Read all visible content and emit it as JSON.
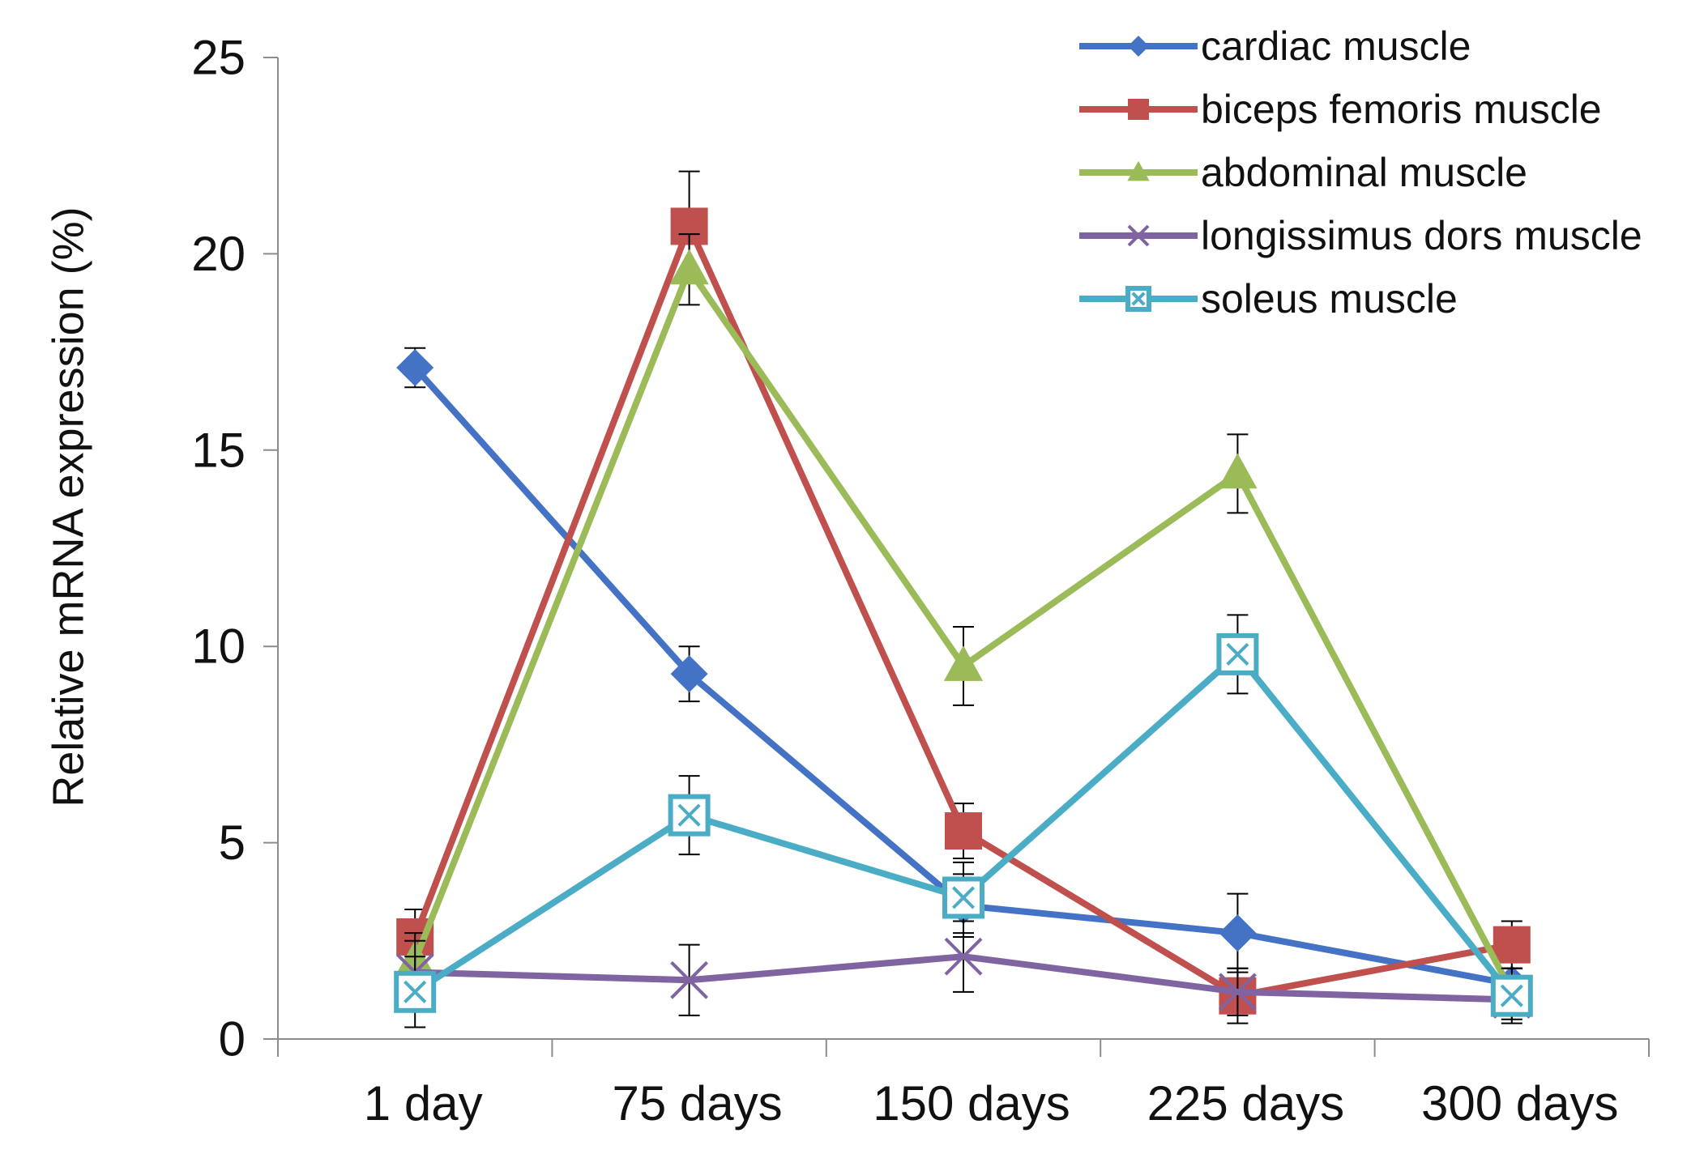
{
  "chart_data": {
    "type": "line",
    "title": "",
    "xlabel": "",
    "ylabel": "Relative mRNA expression (%)",
    "categories": [
      "1 day",
      "75 days",
      "150 days",
      "225 days",
      "300 days"
    ],
    "ylim": [
      0,
      25
    ],
    "yticks": [
      0,
      5,
      10,
      15,
      20,
      25
    ],
    "legend_position": "top-right",
    "series": [
      {
        "name": "cardiac muscle",
        "color": "#4472c4",
        "marker": "diamond",
        "values": [
          17.1,
          9.3,
          3.4,
          2.7,
          1.4
        ],
        "errors": [
          0.5,
          0.7,
          0.8,
          1.0,
          0.4
        ]
      },
      {
        "name": "biceps femoris muscle",
        "color": "#c0504d",
        "marker": "square",
        "values": [
          2.6,
          20.7,
          5.3,
          1.1,
          2.4
        ],
        "errors": [
          0.7,
          1.4,
          0.7,
          0.7,
          0.6
        ]
      },
      {
        "name": "abdominal muscle",
        "color": "#9bbb59",
        "marker": "triangle",
        "values": [
          2.0,
          19.6,
          9.5,
          14.4,
          1.2
        ],
        "errors": [
          0.7,
          0.9,
          1.0,
          1.0,
          0.6
        ]
      },
      {
        "name": "longissimus dors muscle",
        "color": "#8064a2",
        "marker": "x",
        "values": [
          1.7,
          1.5,
          2.1,
          1.2,
          1.0
        ],
        "errors": [
          0.8,
          0.9,
          0.9,
          0.6,
          0.5
        ]
      },
      {
        "name": "soleus muscle",
        "color": "#4bacc6",
        "marker": "boxx",
        "values": [
          1.2,
          5.7,
          3.6,
          9.8,
          1.1
        ],
        "errors": [
          0.9,
          1.0,
          0.9,
          1.0,
          0.7
        ]
      }
    ]
  }
}
